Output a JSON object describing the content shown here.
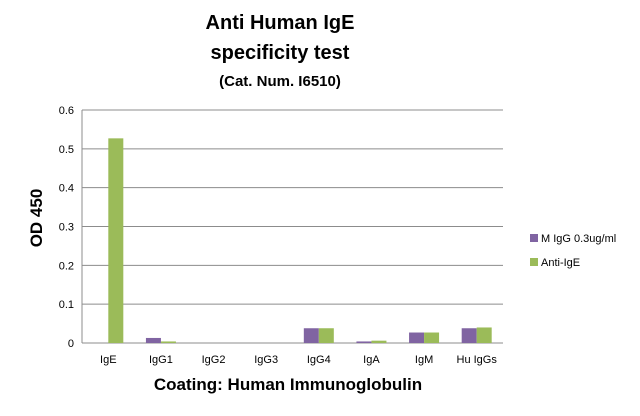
{
  "chart_data": {
    "type": "bar",
    "title": [
      "Anti Human IgE",
      "specificity test",
      "(Cat. Num. I6510)"
    ],
    "xlabel": "Coating:  Human  Immunoglobulin",
    "ylabel": "OD 450",
    "ylim": [
      0,
      0.6
    ],
    "yticks": [
      0,
      0.1,
      0.2,
      0.3,
      0.4,
      0.5,
      0.6
    ],
    "ytick_labels": [
      "0",
      "0.1",
      "0.2",
      "0.3",
      "0.4",
      "0.5",
      "0.6"
    ],
    "grid": "horizontal",
    "legend_position": "right",
    "categories": [
      "IgE",
      "IgG1",
      "IgG2",
      "IgG3",
      "IgG4",
      "IgA",
      "IgM",
      "Hu IgGs"
    ],
    "series": [
      {
        "name": "M IgG 0.3ug/ml",
        "color": "#8064a2",
        "values": [
          0,
          0.013,
          0,
          0,
          0.038,
          0.004,
          0.027,
          0.038
        ]
      },
      {
        "name": "Anti-IgE",
        "color": "#9bbb59",
        "values": [
          0.527,
          0.004,
          0,
          0,
          0.038,
          0.006,
          0.027,
          0.04
        ]
      }
    ]
  }
}
